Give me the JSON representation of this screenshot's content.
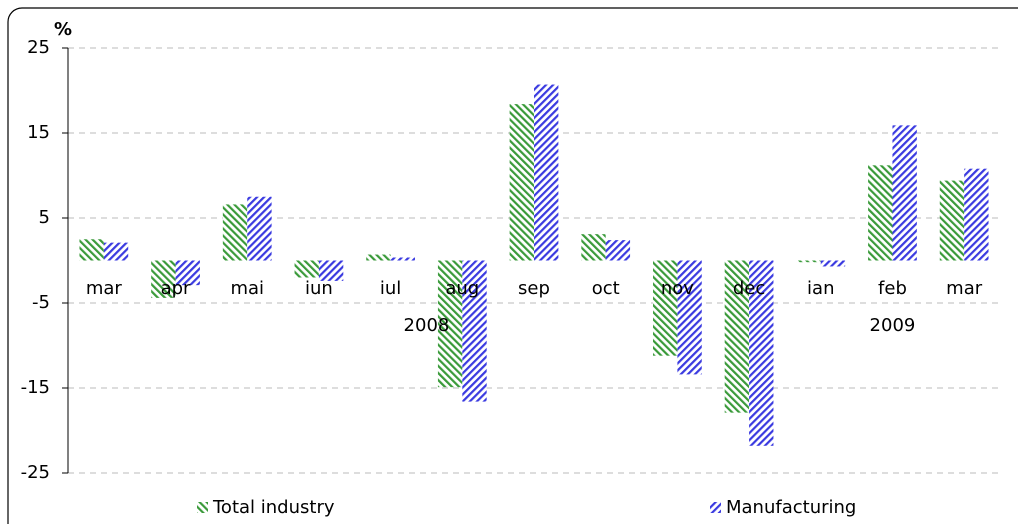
{
  "chart_data": {
    "type": "bar",
    "y_label": "%",
    "categories": [
      "mar",
      "apr",
      "mai",
      "iun",
      "iul",
      "aug",
      "sep",
      "oct",
      "nov",
      "dec",
      "ian",
      "feb",
      "mar"
    ],
    "year_labels": [
      "2008",
      "2009"
    ],
    "series": [
      {
        "name": "Total industry",
        "color": "#3a9a3a",
        "values": [
          2.5,
          -4.4,
          6.6,
          -2.0,
          0.7,
          -14.9,
          18.4,
          3.1,
          -11.2,
          -17.9,
          -0.2,
          11.2,
          9.4
        ]
      },
      {
        "name": "Manufacturing",
        "color": "#3a3ae0",
        "values": [
          2.1,
          -2.9,
          7.5,
          -2.4,
          0.35,
          -16.6,
          20.7,
          2.4,
          -13.4,
          -21.8,
          -0.7,
          15.9,
          10.8
        ]
      }
    ],
    "ylim": [
      -25,
      25
    ],
    "yticks": [
      -25,
      -15,
      -5,
      5,
      15,
      25
    ],
    "grid": true
  }
}
